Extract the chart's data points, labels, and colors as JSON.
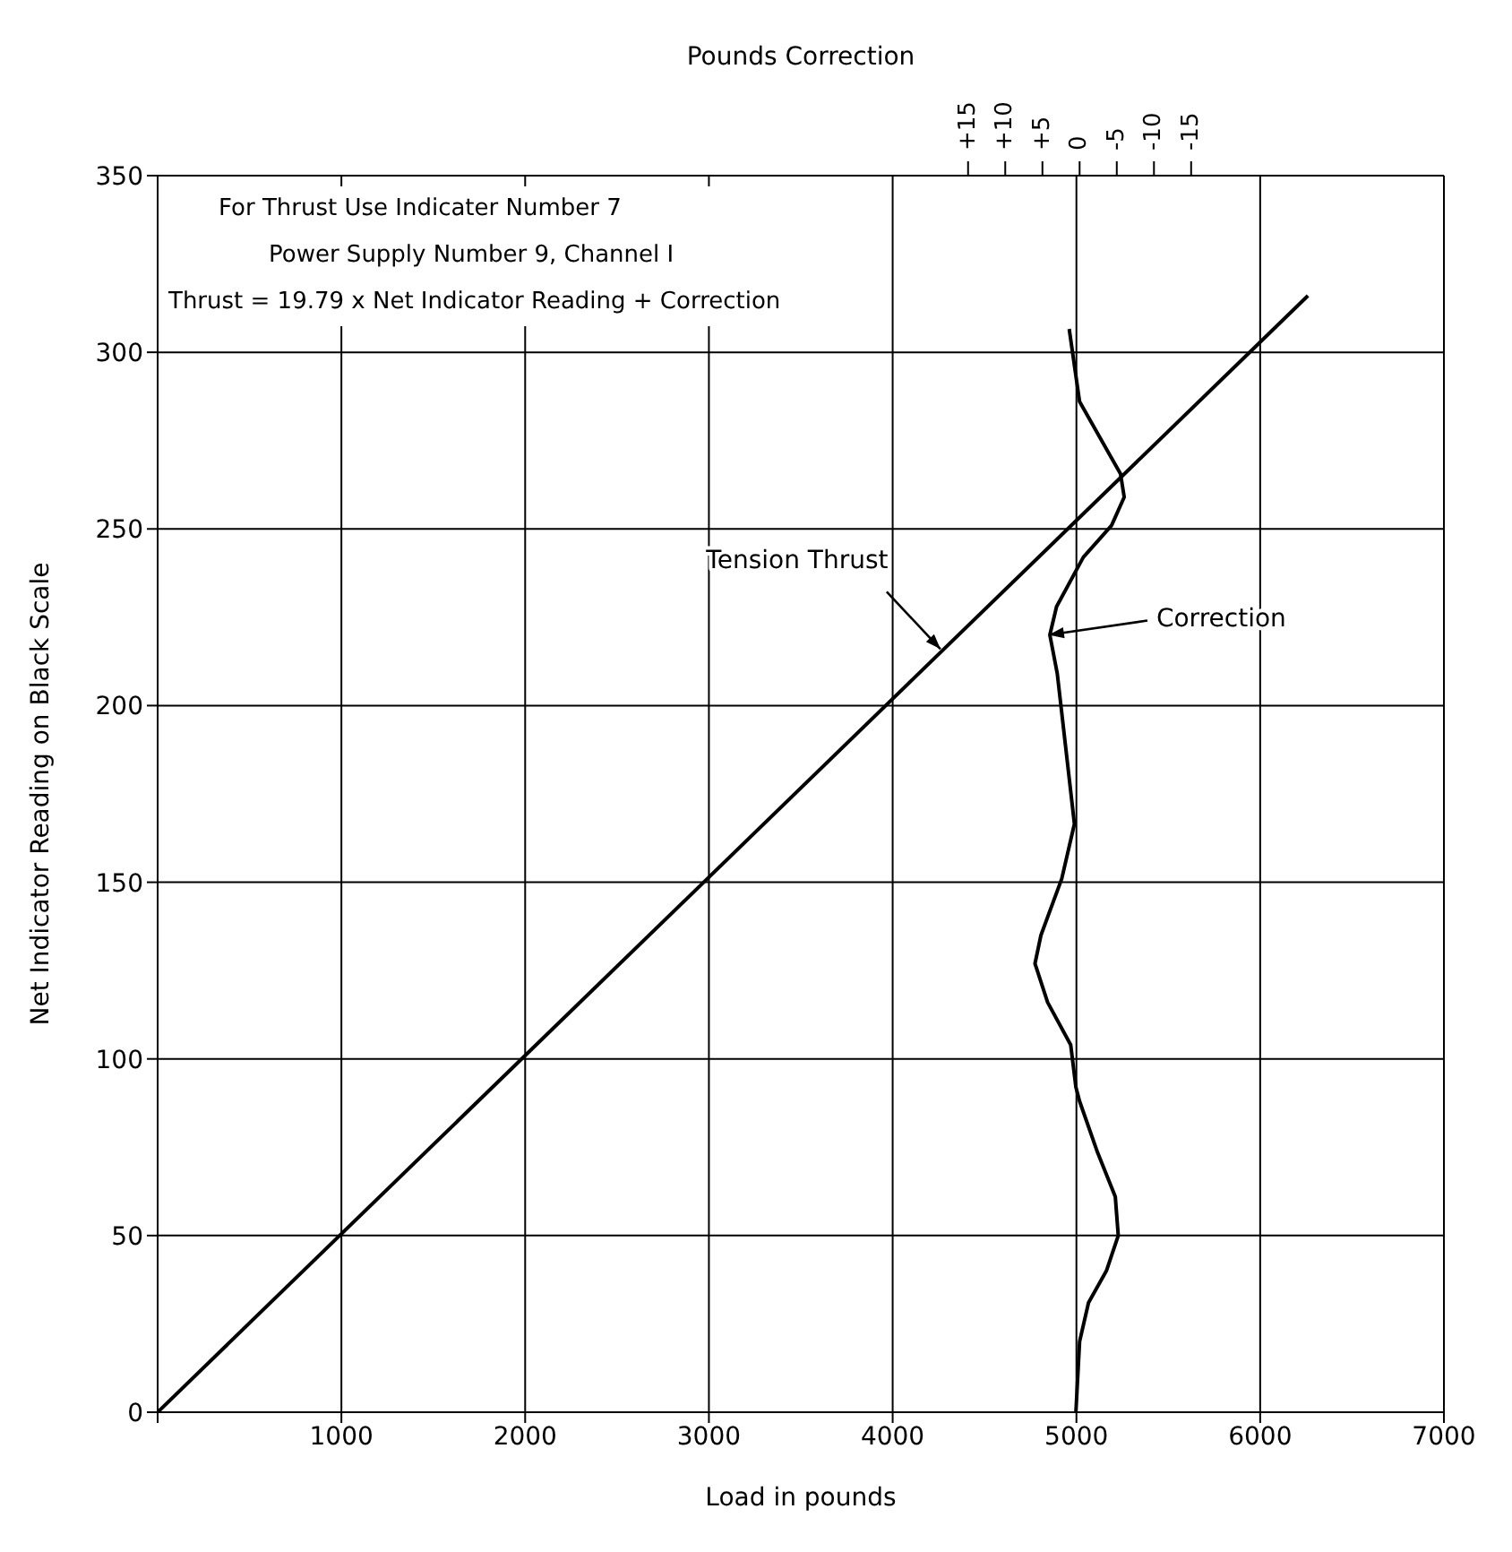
{
  "chart_data": {
    "type": "line",
    "xlabel": "Load in pounds",
    "ylabel": "Net Indicator Reading on Black Scale",
    "x2label": "Pounds Correction",
    "xlim": [
      0,
      7000
    ],
    "xticks": [
      {
        "value": 0,
        "label": null
      },
      1000,
      2000,
      3000,
      4000,
      5000,
      6000,
      7000
    ],
    "ylim": [
      0,
      350
    ],
    "yticks": [
      0,
      50,
      100,
      150,
      200,
      250,
      300,
      350
    ],
    "x2lim": [
      124,
      -49
    ],
    "x2ticks": [
      {
        "value": 15,
        "label": "+15"
      },
      {
        "value": 10,
        "label": "+10"
      },
      {
        "value": 5,
        "label": "+5"
      },
      0,
      -5,
      -10,
      -15
    ],
    "grid": true,
    "marker": "none",
    "line_style": "solid",
    "series": [
      {
        "color": "#000000",
        "x": [
          0,
          6260
        ],
        "values": [
          0,
          316
        ]
      },
      {
        "color": "#000000",
        "axis": "x2",
        "x": [
          0.5,
          0,
          -1.2,
          -3.6,
          -5.2,
          -4.8,
          -2.4,
          0,
          0.5,
          1.2,
          4.3,
          6,
          5.2,
          2.4,
          0.7,
          1.7,
          3,
          4,
          3.1,
          -0.5,
          -4.3,
          -6,
          -5.5,
          0,
          1.4
        ],
        "values": [
          0,
          20,
          31,
          40,
          50,
          61,
          73.6,
          88,
          92,
          104,
          116,
          127,
          135,
          151,
          166.5,
          185,
          209,
          220,
          228,
          242,
          251,
          259,
          265.6,
          286,
          306.6
        ]
      }
    ],
    "annotations": [
      "For Thrust Use Indicater Number 7",
      "Power Supply Number 9, Channel I",
      "Thrust = 19.79 x Net Indicator Reading + Correction",
      {
        "text": "Tension Thrust",
        "x": 4260,
        "y": 216
      },
      {
        "text": "Correction",
        "x": 4850,
        "y": 220
      }
    ]
  }
}
